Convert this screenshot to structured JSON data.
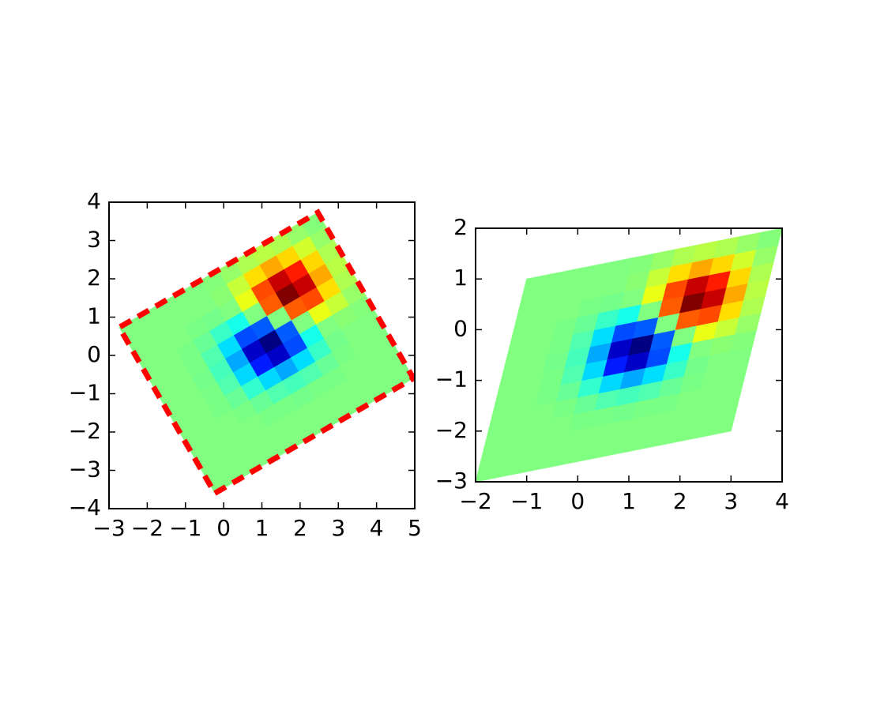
{
  "chart_data": [
    {
      "type": "image",
      "colormap": "jet",
      "origin": "lower",
      "extent": [
        -2,
        4,
        -3,
        2
      ],
      "affine": [
        0.866,
        -0.5,
        0,
        0.5,
        0.866,
        0
      ],
      "outline_color": "#ff0000",
      "xlim": [
        -3,
        5
      ],
      "ylim": [
        -4,
        4
      ],
      "xticks": [
        {
          "value": -3,
          "label": "−3"
        },
        {
          "value": -2,
          "label": "−2"
        },
        {
          "value": -1,
          "label": "−1"
        },
        0,
        1,
        2,
        3,
        4,
        5
      ],
      "yticks": [
        {
          "value": -4,
          "label": "−4"
        },
        {
          "value": -3,
          "label": "−3"
        },
        {
          "value": -2,
          "label": "−2"
        },
        {
          "value": -1,
          "label": "−1"
        },
        0,
        1,
        2,
        3,
        4
      ],
      "z": [
        [
          0,
          0,
          0,
          0,
          0,
          0,
          0,
          0,
          0,
          0,
          0,
          0
        ],
        [
          0,
          0,
          0,
          0,
          0,
          0,
          0,
          0,
          0,
          0,
          0,
          0
        ],
        [
          0,
          0,
          0,
          0,
          -0.01,
          -0.01,
          -0.02,
          -0.01,
          -0.01,
          0,
          0,
          0
        ],
        [
          0,
          0,
          0,
          -0.01,
          -0.04,
          -0.08,
          -0.1,
          -0.08,
          -0.04,
          -0.01,
          0,
          0
        ],
        [
          0,
          0,
          -0.01,
          -0.04,
          -0.13,
          -0.28,
          -0.36,
          -0.27,
          -0.12,
          -0.02,
          0,
          0
        ],
        [
          0,
          0,
          -0.01,
          -0.08,
          -0.28,
          -0.6,
          -0.74,
          -0.52,
          -0.18,
          0,
          0.02,
          0.01
        ],
        [
          0,
          0,
          -0.02,
          -0.1,
          -0.36,
          -0.74,
          -0.86,
          -0.49,
          0,
          0.18,
          0.12,
          0.04
        ],
        [
          0,
          0,
          -0.01,
          -0.08,
          -0.27,
          -0.52,
          -0.49,
          0,
          0.49,
          0.52,
          0.27,
          0.08
        ],
        [
          0,
          0,
          -0.01,
          -0.04,
          -0.12,
          -0.18,
          0,
          0.49,
          0.86,
          0.74,
          0.36,
          0.1
        ],
        [
          0,
          0,
          0,
          -0.01,
          -0.02,
          0,
          0.18,
          0.52,
          0.74,
          0.6,
          0.28,
          0.08
        ],
        [
          0,
          0,
          0,
          0,
          0,
          0.02,
          0.12,
          0.27,
          0.36,
          0.28,
          0.14,
          0.04
        ],
        [
          0,
          0,
          0,
          0,
          0,
          0.01,
          0.04,
          0.08,
          0.1,
          0.08,
          0.04,
          0.01
        ]
      ]
    },
    {
      "type": "image",
      "colormap": "jet",
      "origin": "lower",
      "extent": [
        -2,
        4,
        -3,
        2
      ],
      "affine": [
        0.8333,
        0.2,
        0.2667,
        0.1667,
        0.8,
        -0.2667
      ],
      "xlim": [
        -2,
        4
      ],
      "ylim": [
        -3,
        2
      ],
      "xticks": [
        {
          "value": -2,
          "label": "−2"
        },
        {
          "value": -1,
          "label": "−1"
        },
        0,
        1,
        2,
        3,
        4
      ],
      "yticks": [
        {
          "value": -3,
          "label": "−3"
        },
        {
          "value": -2,
          "label": "−2"
        },
        {
          "value": -1,
          "label": "−1"
        },
        0,
        1,
        2
      ],
      "z": [
        [
          0,
          0,
          0,
          0,
          0,
          0,
          0,
          0,
          0,
          0,
          0,
          0
        ],
        [
          0,
          0,
          0,
          0,
          0,
          0,
          0,
          0,
          0,
          0,
          0,
          0
        ],
        [
          0,
          0,
          0,
          0,
          -0.01,
          -0.01,
          -0.02,
          -0.01,
          -0.01,
          0,
          0,
          0
        ],
        [
          0,
          0,
          0,
          -0.01,
          -0.04,
          -0.08,
          -0.1,
          -0.08,
          -0.04,
          -0.01,
          0,
          0
        ],
        [
          0,
          0,
          -0.01,
          -0.04,
          -0.13,
          -0.28,
          -0.36,
          -0.27,
          -0.12,
          -0.02,
          0,
          0
        ],
        [
          0,
          0,
          -0.01,
          -0.08,
          -0.28,
          -0.6,
          -0.74,
          -0.52,
          -0.18,
          0,
          0.02,
          0.01
        ],
        [
          0,
          0,
          -0.02,
          -0.1,
          -0.36,
          -0.74,
          -0.86,
          -0.49,
          0,
          0.18,
          0.12,
          0.04
        ],
        [
          0,
          0,
          -0.01,
          -0.08,
          -0.27,
          -0.52,
          -0.49,
          0,
          0.49,
          0.52,
          0.27,
          0.08
        ],
        [
          0,
          0,
          -0.01,
          -0.04,
          -0.12,
          -0.18,
          0,
          0.49,
          0.86,
          0.74,
          0.36,
          0.1
        ],
        [
          0,
          0,
          0,
          -0.01,
          -0.02,
          0,
          0.18,
          0.52,
          0.74,
          0.6,
          0.28,
          0.08
        ],
        [
          0,
          0,
          0,
          0,
          0,
          0.02,
          0.12,
          0.27,
          0.36,
          0.28,
          0.14,
          0.04
        ],
        [
          0,
          0,
          0,
          0,
          0,
          0.01,
          0.04,
          0.08,
          0.1,
          0.08,
          0.04,
          0.01
        ]
      ]
    }
  ]
}
